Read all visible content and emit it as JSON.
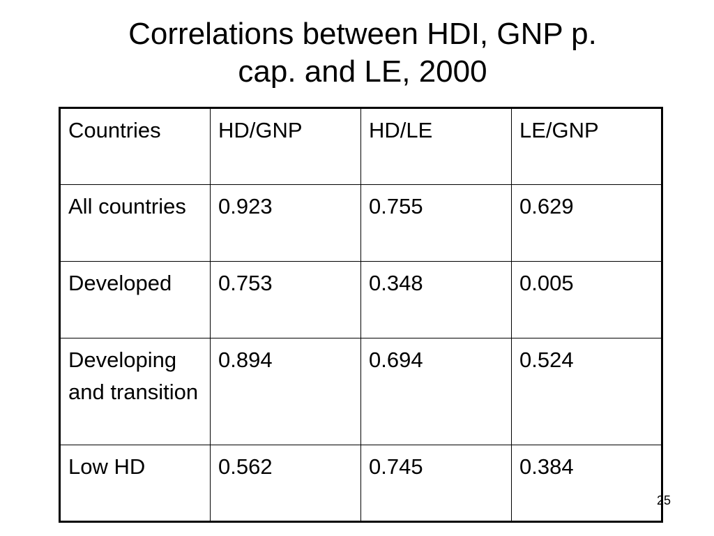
{
  "slide": {
    "title_line1": "Correlations between HDI, GNP p.",
    "title_line2": "cap. and LE, 2000",
    "page_number": "25"
  },
  "table": {
    "headers": [
      "Countries",
      "HD/GNP",
      "HD/LE",
      "LE/GNP"
    ],
    "rows": [
      [
        "All countries",
        "0.923",
        "0.755",
        "0.629"
      ],
      [
        "Developed",
        "0.753",
        "0.348",
        "0.005"
      ],
      [
        "Developing and transition",
        "0.894",
        "0.694",
        "0.524"
      ],
      [
        "Low HD",
        "0.562",
        "0.745",
        "0.384"
      ]
    ]
  }
}
